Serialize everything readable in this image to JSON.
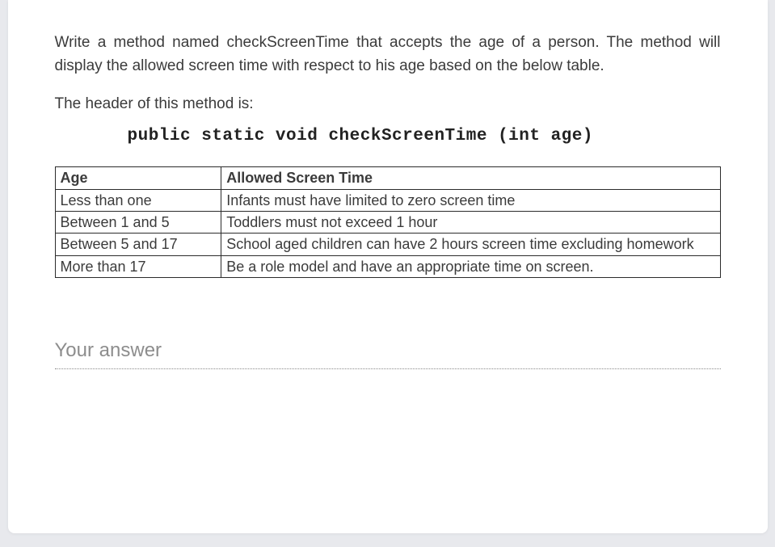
{
  "question": {
    "prompt": "Write a method named checkScreenTime that accepts the age of a person. The method will display the allowed screen time with respect to his age based on the below table.",
    "header_intro": "The header of this method is:",
    "method_signature": "public static void checkScreenTime (int age)"
  },
  "table": {
    "headers": {
      "age": "Age",
      "allowed": "Allowed Screen Time"
    },
    "rows": [
      {
        "age": "Less than one",
        "allowed": "Infants must have limited to zero screen time"
      },
      {
        "age": "Between 1 and 5",
        "allowed": "Toddlers must not exceed 1 hour"
      },
      {
        "age": "Between 5 and 17",
        "allowed": "School aged children can have 2 hours screen time excluding homework"
      },
      {
        "age": "More than 17",
        "allowed": "Be a role model and have an appropriate time on screen."
      }
    ],
    "border_color": "#2b2b2b",
    "text_color": "#3b3b3b",
    "font_size_pt": 14
  },
  "answer": {
    "placeholder": "Your answer",
    "value": ""
  },
  "style": {
    "page_bg": "#e8e9ed",
    "card_bg": "#ffffff",
    "body_text_color": "#3b3b3b",
    "placeholder_color": "#8d8d8d",
    "body_font": "Verdana",
    "code_font": "Courier New",
    "answer_underline_color": "#8a8a8a"
  }
}
